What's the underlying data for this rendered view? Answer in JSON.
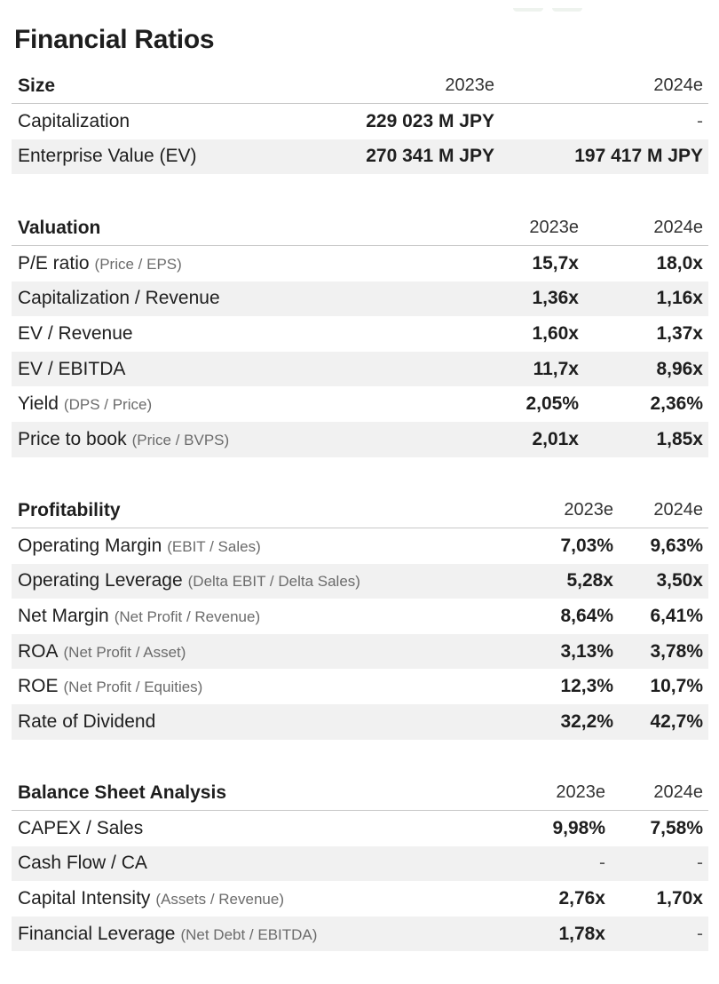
{
  "page": {
    "title": "Financial Ratios"
  },
  "sections": [
    {
      "title": "Size",
      "years": [
        "2023e",
        "2024e"
      ],
      "rows": [
        {
          "label": "Capitalization",
          "sub": "",
          "values": [
            "229 023 M JPY",
            "-"
          ]
        },
        {
          "label": "Enterprise Value (EV)",
          "sub": "",
          "values": [
            "270 341 M JPY",
            "197 417 M JPY"
          ]
        }
      ]
    },
    {
      "title": "Valuation",
      "years": [
        "2023e",
        "2024e"
      ],
      "rows": [
        {
          "label": "P/E ratio",
          "sub": "(Price / EPS)",
          "values": [
            "15,7x",
            "18,0x"
          ]
        },
        {
          "label": "Capitalization / Revenue",
          "sub": "",
          "values": [
            "1,36x",
            "1,16x"
          ]
        },
        {
          "label": "EV / Revenue",
          "sub": "",
          "values": [
            "1,60x",
            "1,37x"
          ]
        },
        {
          "label": "EV / EBITDA",
          "sub": "",
          "values": [
            "11,7x",
            "8,96x"
          ]
        },
        {
          "label": "Yield",
          "sub": "(DPS / Price)",
          "values": [
            "2,05%",
            "2,36%"
          ]
        },
        {
          "label": "Price to book",
          "sub": "(Price / BVPS)",
          "values": [
            "2,01x",
            "1,85x"
          ]
        }
      ]
    },
    {
      "title": "Profitability",
      "years": [
        "2023e",
        "2024e"
      ],
      "rows": [
        {
          "label": "Operating Margin",
          "sub": "(EBIT / Sales)",
          "values": [
            "7,03%",
            "9,63%"
          ]
        },
        {
          "label": "Operating Leverage",
          "sub": "(Delta EBIT / Delta Sales)",
          "values": [
            "5,28x",
            "3,50x"
          ]
        },
        {
          "label": "Net Margin",
          "sub": "(Net Profit / Revenue)",
          "values": [
            "8,64%",
            "6,41%"
          ]
        },
        {
          "label": "ROA",
          "sub": "(Net Profit / Asset)",
          "values": [
            "3,13%",
            "3,78%"
          ]
        },
        {
          "label": "ROE",
          "sub": "(Net Profit / Equities)",
          "values": [
            "12,3%",
            "10,7%"
          ]
        },
        {
          "label": "Rate of Dividend",
          "sub": "",
          "values": [
            "32,2%",
            "42,7%"
          ]
        }
      ]
    },
    {
      "title": "Balance Sheet Analysis",
      "years": [
        "2023e",
        "2024e"
      ],
      "rows": [
        {
          "label": "CAPEX / Sales",
          "sub": "",
          "values": [
            "9,98%",
            "7,58%"
          ]
        },
        {
          "label": "Cash Flow / CA",
          "sub": "",
          "values": [
            "-",
            "-"
          ]
        },
        {
          "label": "Capital Intensity",
          "sub": "(Assets / Revenue)",
          "values": [
            "2,76x",
            "1,70x"
          ]
        },
        {
          "label": "Financial Leverage",
          "sub": "(Net Debt / EBITDA)",
          "values": [
            "1,78x",
            "-"
          ]
        }
      ]
    }
  ]
}
